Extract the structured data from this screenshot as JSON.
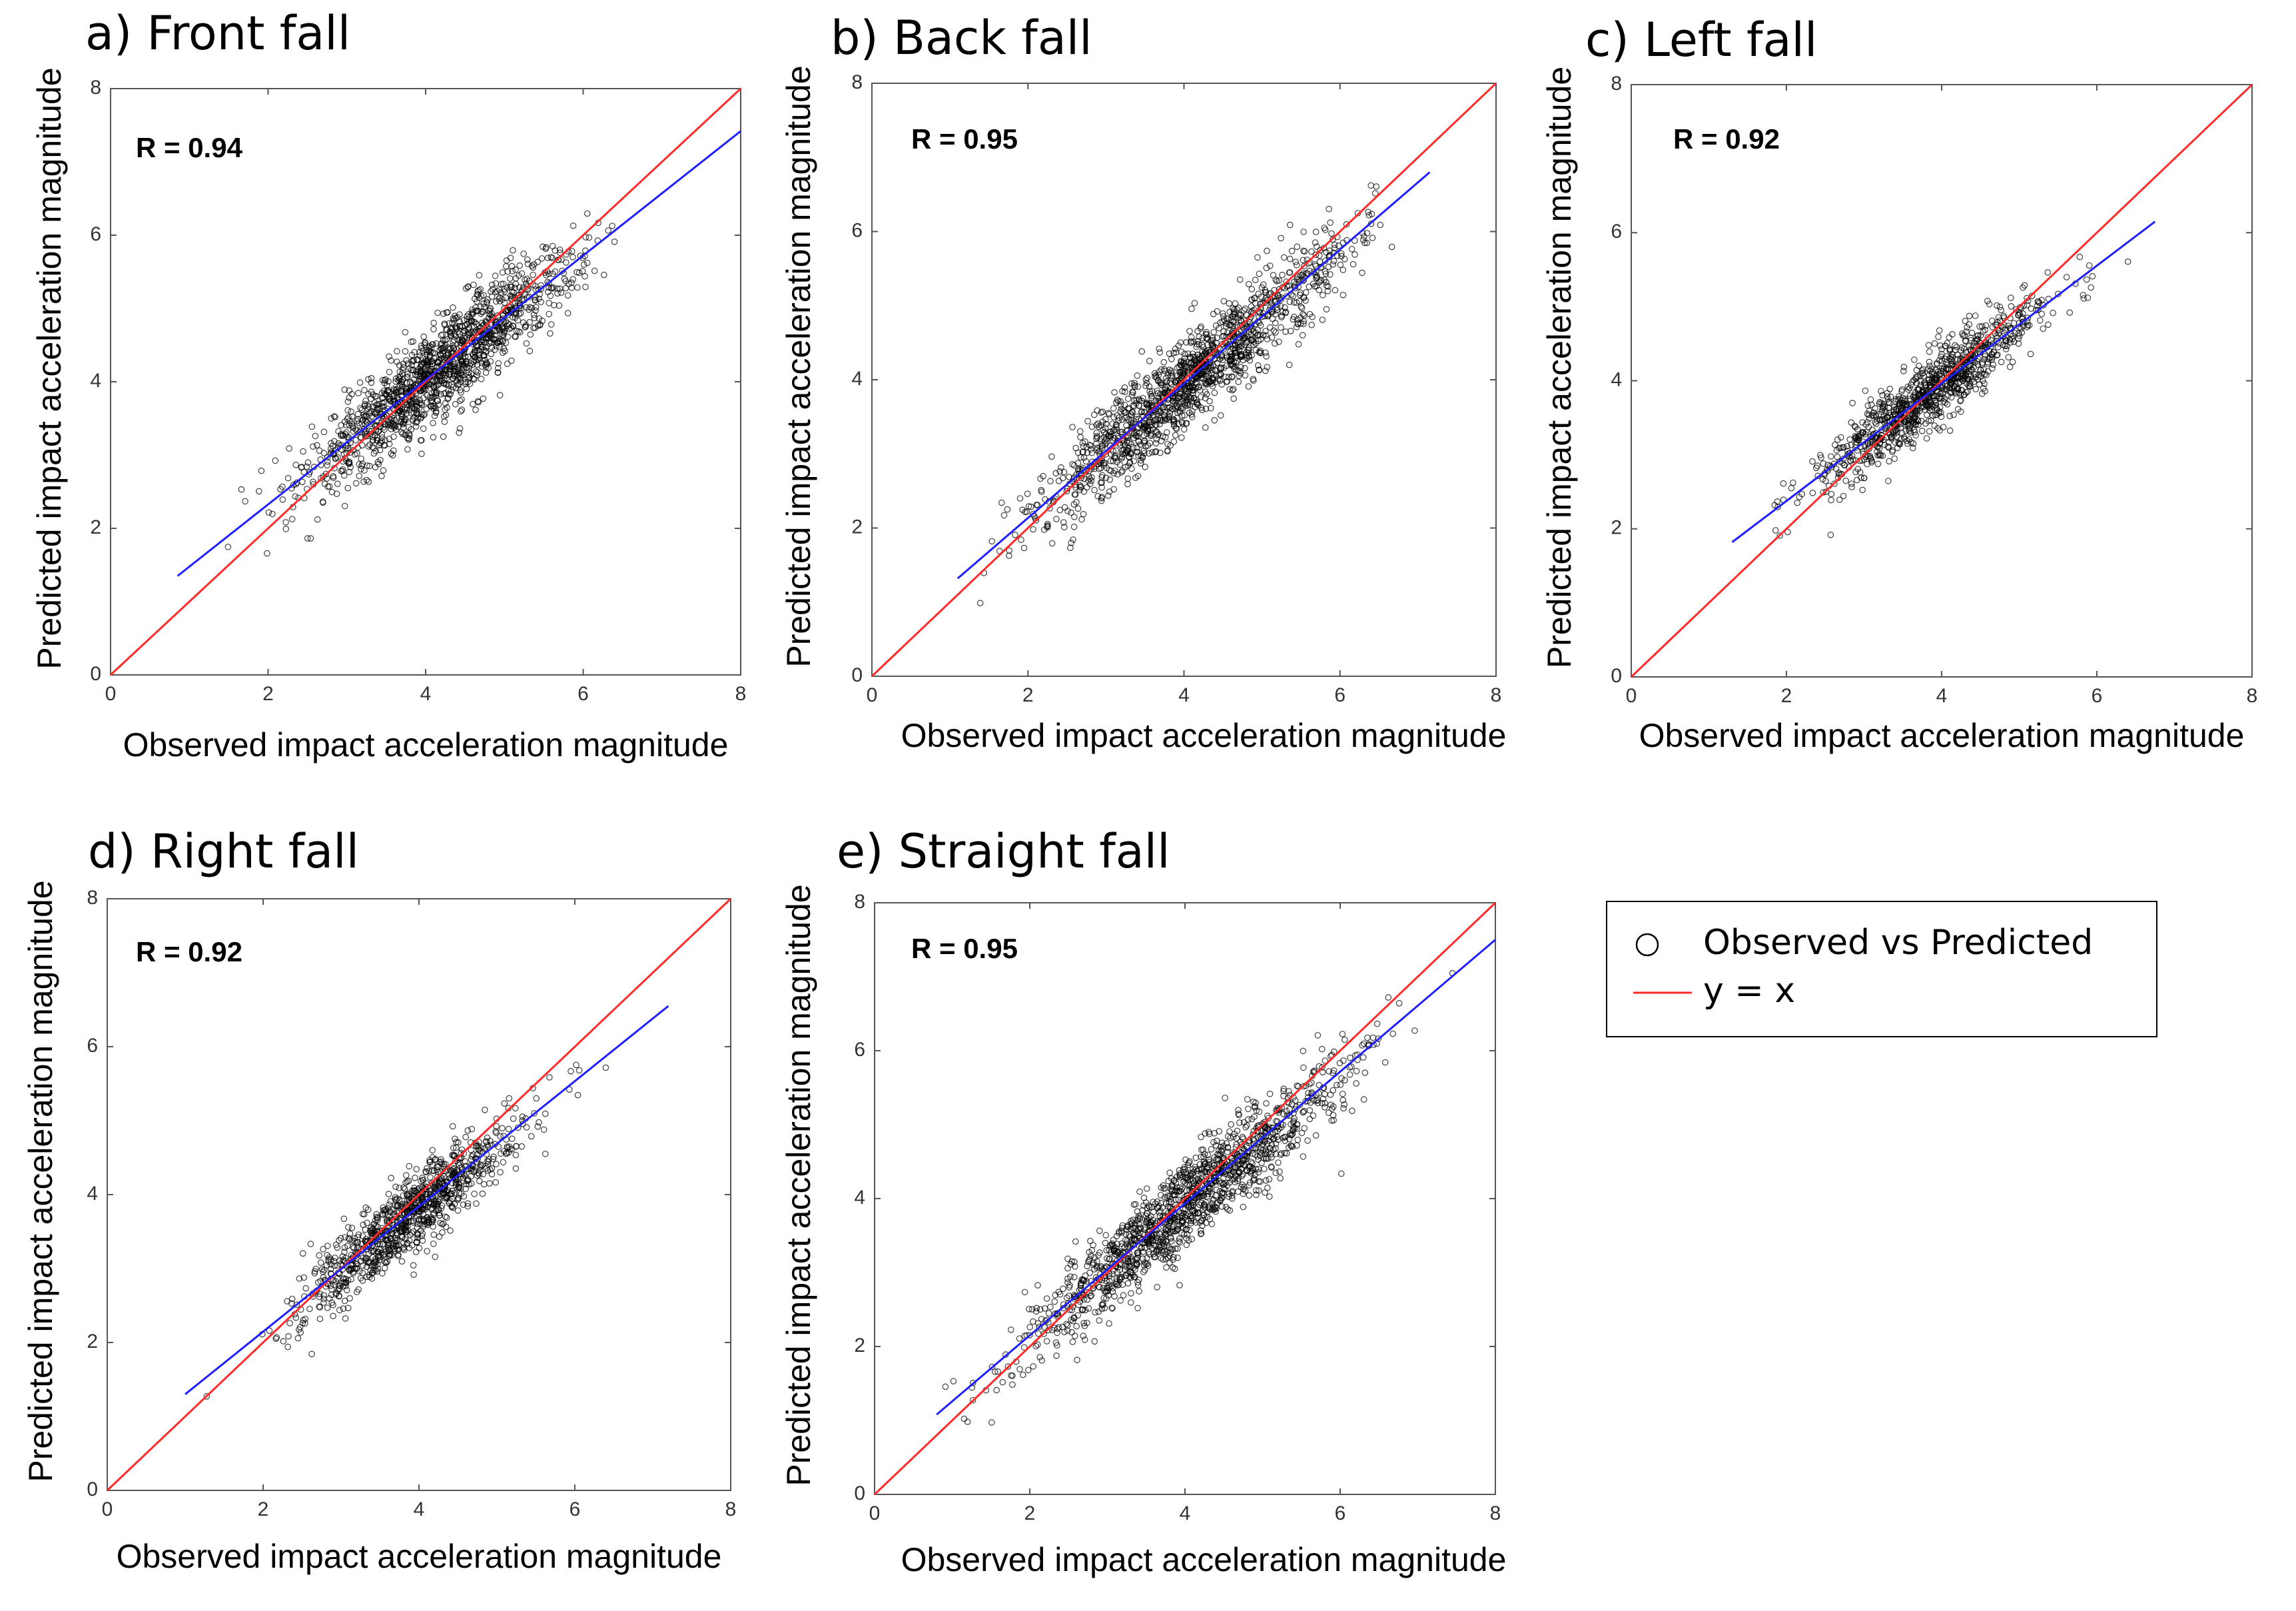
{
  "colors": {
    "marker": "#000000",
    "identity_line": "#ff2a2a",
    "fit_line": "#1f1fff",
    "axes": "#555555",
    "background": "#ffffff"
  },
  "legend": {
    "items": [
      {
        "label": "Observed vs Predicted",
        "symbol": "open-circle-marker",
        "color": "#000000"
      },
      {
        "label": "y = x",
        "symbol": "line",
        "color": "#ff2a2a"
      }
    ]
  },
  "chart_data": [
    {
      "type": "scatter",
      "title": "a) Front fall",
      "annotation": "R = 0.94",
      "xlabel": "Observed impact acceleration magnitude",
      "ylabel": "Predicted impact acceleration magnitude",
      "xlim": [
        0,
        8
      ],
      "ylim": [
        0,
        8
      ],
      "xticks": [
        "0",
        "2",
        "4",
        "6",
        "8"
      ],
      "yticks": [
        "0",
        "2",
        "4",
        "6",
        "8"
      ],
      "grid": false,
      "series": [
        {
          "name": "Observed vs Predicted",
          "kind": "points",
          "n": 1400,
          "x_range": [
            0.8,
            7.9
          ],
          "x_center": 4.2,
          "x_spread": 0.85,
          "y_slope": 0.85,
          "y_intercept": 0.62,
          "y_noise": 0.32
        },
        {
          "name": "y = x",
          "kind": "line",
          "points": [
            [
              0,
              0
            ],
            [
              8,
              8
            ]
          ]
        },
        {
          "kind": "line",
          "points": [
            [
              0.85,
              1.35
            ],
            [
              8.0,
              7.42
            ]
          ]
        }
      ]
    },
    {
      "type": "scatter",
      "title": "b) Back fall",
      "annotation": "R = 0.95",
      "xlabel": "Observed impact acceleration magnitude",
      "ylabel": "Predicted impact acceleration magnitude",
      "xlim": [
        0,
        8
      ],
      "ylim": [
        0,
        8
      ],
      "xticks": [
        "0",
        "2",
        "4",
        "6",
        "8"
      ],
      "yticks": [
        "0",
        "2",
        "4",
        "6",
        "8"
      ],
      "grid": false,
      "series": [
        {
          "name": "Observed vs Predicted",
          "kind": "points",
          "n": 1400,
          "x_range": [
            1.1,
            7.2
          ],
          "x_center": 4.1,
          "x_spread": 0.95,
          "y_slope": 0.89,
          "y_intercept": 0.35,
          "y_noise": 0.3
        },
        {
          "name": "y = x",
          "kind": "line",
          "points": [
            [
              0,
              0
            ],
            [
              8,
              8
            ]
          ]
        },
        {
          "kind": "line",
          "points": [
            [
              1.1,
              1.32
            ],
            [
              7.15,
              6.8
            ]
          ]
        }
      ]
    },
    {
      "type": "scatter",
      "title": "c) Left fall",
      "annotation": "R = 0.92",
      "xlabel": "Observed impact acceleration magnitude",
      "ylabel": "Predicted impact acceleration magnitude",
      "xlim": [
        0,
        8
      ],
      "ylim": [
        0,
        8
      ],
      "xticks": [
        "0",
        "2",
        "4",
        "6",
        "8"
      ],
      "yticks": [
        "0",
        "2",
        "4",
        "6",
        "8"
      ],
      "grid": false,
      "series": [
        {
          "name": "Observed vs Predicted",
          "kind": "points",
          "n": 1000,
          "x_range": [
            1.6,
            6.8
          ],
          "x_center": 3.8,
          "x_spread": 0.7,
          "y_slope": 0.8,
          "y_intercept": 0.75,
          "y_noise": 0.25
        },
        {
          "name": "y = x",
          "kind": "line",
          "points": [
            [
              0,
              0
            ],
            [
              8,
              8
            ]
          ]
        },
        {
          "kind": "line",
          "points": [
            [
              1.3,
              1.82
            ],
            [
              6.75,
              6.15
            ]
          ]
        }
      ]
    },
    {
      "type": "scatter",
      "title": "d) Right fall",
      "annotation": "R = 0.92",
      "xlabel": "Observed impact acceleration magnitude",
      "ylabel": "Predicted impact acceleration magnitude",
      "xlim": [
        0,
        8
      ],
      "ylim": [
        0,
        8
      ],
      "xticks": [
        "0",
        "2",
        "4",
        "6",
        "8"
      ],
      "yticks": [
        "0",
        "2",
        "4",
        "6",
        "8"
      ],
      "grid": false,
      "series": [
        {
          "name": "Observed vs Predicted",
          "kind": "points",
          "n": 1000,
          "x_range": [
            1.0,
            7.3
          ],
          "x_center": 3.9,
          "x_spread": 0.7,
          "y_slope": 0.84,
          "y_intercept": 0.45,
          "y_noise": 0.26
        },
        {
          "name": "y = x",
          "kind": "line",
          "points": [
            [
              0,
              0
            ],
            [
              8,
              8
            ]
          ]
        },
        {
          "kind": "line",
          "points": [
            [
              1.0,
              1.3
            ],
            [
              7.2,
              6.55
            ]
          ]
        }
      ]
    },
    {
      "type": "scatter",
      "title": "e) Straight fall",
      "annotation": "R = 0.95",
      "xlabel": "Observed impact acceleration magnitude",
      "ylabel": "Predicted impact acceleration magnitude",
      "xlim": [
        0,
        8
      ],
      "ylim": [
        0,
        8
      ],
      "xticks": [
        "0",
        "2",
        "4",
        "6",
        "8"
      ],
      "yticks": [
        "0",
        "2",
        "4",
        "6",
        "8"
      ],
      "grid": false,
      "series": [
        {
          "name": "Observed vs Predicted",
          "kind": "points",
          "n": 1400,
          "x_range": [
            0.8,
            7.9
          ],
          "x_center": 4.0,
          "x_spread": 1.05,
          "y_slope": 0.88,
          "y_intercept": 0.38,
          "y_noise": 0.3
        },
        {
          "name": "y = x",
          "kind": "line",
          "points": [
            [
              0,
              0
            ],
            [
              8,
              8
            ]
          ]
        },
        {
          "kind": "line",
          "points": [
            [
              0.8,
              1.08
            ],
            [
              8.0,
              7.5
            ]
          ]
        }
      ]
    }
  ]
}
